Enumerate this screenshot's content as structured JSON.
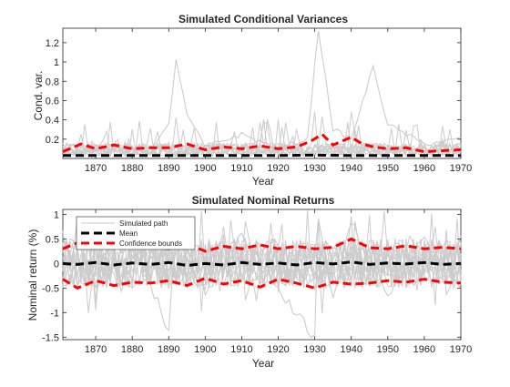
{
  "chart_data": [
    {
      "type": "line",
      "title": "Simulated Conditional Variances",
      "xlabel": "Year",
      "ylabel": "Cond. var.",
      "xlim": [
        1861,
        1970
      ],
      "ylim": [
        0,
        1.35
      ],
      "grid": false,
      "xticks": [
        1870,
        1880,
        1890,
        1900,
        1910,
        1920,
        1930,
        1940,
        1950,
        1960,
        1970
      ],
      "yticks": [
        0.2,
        0.4,
        0.6,
        0.8,
        1,
        1.2
      ],
      "ytick_labels": [
        "0.2",
        "0.4",
        "0.6",
        "0.8",
        "1",
        "1.2"
      ],
      "series": [
        {
          "kind": "simulated",
          "color": "#c8c8c8",
          "x": [
            1861,
            1870,
            1885,
            1890,
            1892,
            1895,
            1900,
            1910,
            1920,
            1928,
            1931,
            1935,
            1940,
            1946,
            1950,
            1960,
            1970
          ],
          "y": [
            0.05,
            0.08,
            0.06,
            0.35,
            1.03,
            0.45,
            0.12,
            0.25,
            0.1,
            0.2,
            1.34,
            0.3,
            0.2,
            0.95,
            0.35,
            0.15,
            0.2
          ]
        },
        {
          "kind": "mean",
          "color": "#000000",
          "x": [
            1861,
            1870,
            1880,
            1890,
            1900,
            1910,
            1920,
            1930,
            1940,
            1950,
            1960,
            1970
          ],
          "y": [
            0.03,
            0.03,
            0.03,
            0.03,
            0.03,
            0.03,
            0.03,
            0.035,
            0.03,
            0.03,
            0.03,
            0.03
          ]
        },
        {
          "kind": "upper",
          "color": "#ff0000",
          "x": [
            1861,
            1866,
            1870,
            1875,
            1880,
            1885,
            1890,
            1895,
            1900,
            1905,
            1910,
            1915,
            1920,
            1925,
            1929,
            1932,
            1935,
            1940,
            1943,
            1946,
            1950,
            1955,
            1960,
            1965,
            1970
          ],
          "y": [
            0.07,
            0.15,
            0.1,
            0.14,
            0.1,
            0.11,
            0.11,
            0.15,
            0.09,
            0.12,
            0.1,
            0.13,
            0.1,
            0.12,
            0.18,
            0.25,
            0.14,
            0.22,
            0.15,
            0.12,
            0.1,
            0.11,
            0.07,
            0.08,
            0.09
          ]
        }
      ]
    },
    {
      "type": "line",
      "title": "Simulated Nominal Returns",
      "xlabel": "Year",
      "ylabel": "Nominal return (%)",
      "xlim": [
        1861,
        1970
      ],
      "ylim": [
        -1.55,
        1.1
      ],
      "grid": false,
      "xticks": [
        1870,
        1880,
        1890,
        1900,
        1910,
        1920,
        1930,
        1940,
        1950,
        1960,
        1970
      ],
      "yticks": [
        -1.5,
        -1,
        -0.5,
        0,
        0.5,
        1
      ],
      "ytick_labels": [
        "-1.5",
        "-1",
        "-0.5",
        "0",
        "0.5",
        "1"
      ],
      "legend": {
        "position": "top-left",
        "entries": [
          "Simulated path",
          "Mean",
          "Confidence bounds"
        ]
      },
      "series": [
        {
          "name": "Simulated path",
          "kind": "simulated",
          "color": "#c8c8c8",
          "x": [
            1861,
            1870,
            1880,
            1890,
            1892,
            1900,
            1910,
            1920,
            1930,
            1931,
            1935,
            1940,
            1950,
            1960,
            1970
          ],
          "y": [
            0.4,
            -0.45,
            0.5,
            -1.35,
            0.9,
            -0.6,
            0.6,
            -0.5,
            -1.5,
            1.0,
            -0.7,
            0.8,
            -0.6,
            0.5,
            -0.4
          ]
        },
        {
          "name": "Mean",
          "kind": "mean",
          "color": "#000000",
          "x": [
            1861,
            1865,
            1870,
            1875,
            1880,
            1885,
            1890,
            1895,
            1900,
            1905,
            1910,
            1915,
            1920,
            1925,
            1930,
            1935,
            1940,
            1945,
            1950,
            1955,
            1960,
            1965,
            1970
          ],
          "y": [
            0,
            -0.02,
            0.02,
            -0.03,
            0.01,
            -0.02,
            0.02,
            -0.04,
            0.0,
            -0.03,
            0.02,
            -0.02,
            0.01,
            -0.03,
            0.02,
            -0.01,
            0.03,
            -0.02,
            0.01,
            -0.01,
            0.02,
            -0.02,
            0.0
          ]
        },
        {
          "name": "Confidence bounds",
          "kind": "upper",
          "color": "#ff0000",
          "x": [
            1861,
            1865,
            1870,
            1875,
            1880,
            1885,
            1890,
            1895,
            1900,
            1905,
            1910,
            1915,
            1920,
            1925,
            1930,
            1935,
            1940,
            1945,
            1950,
            1955,
            1960,
            1965,
            1970
          ],
          "y": [
            0.3,
            0.42,
            0.3,
            0.38,
            0.32,
            0.34,
            0.3,
            0.4,
            0.25,
            0.35,
            0.3,
            0.38,
            0.3,
            0.35,
            0.3,
            0.33,
            0.5,
            0.32,
            0.3,
            0.36,
            0.3,
            0.33,
            0.3
          ]
        },
        {
          "kind": "lower",
          "color": "#ff0000",
          "x": [
            1861,
            1865,
            1870,
            1875,
            1880,
            1885,
            1890,
            1895,
            1900,
            1905,
            1910,
            1915,
            1920,
            1925,
            1930,
            1935,
            1940,
            1945,
            1950,
            1955,
            1960,
            1965,
            1970
          ],
          "y": [
            -0.32,
            -0.5,
            -0.35,
            -0.45,
            -0.38,
            -0.4,
            -0.35,
            -0.45,
            -0.3,
            -0.42,
            -0.35,
            -0.48,
            -0.32,
            -0.4,
            -0.5,
            -0.38,
            -0.42,
            -0.4,
            -0.35,
            -0.38,
            -0.32,
            -0.38,
            -0.4
          ]
        }
      ]
    }
  ]
}
